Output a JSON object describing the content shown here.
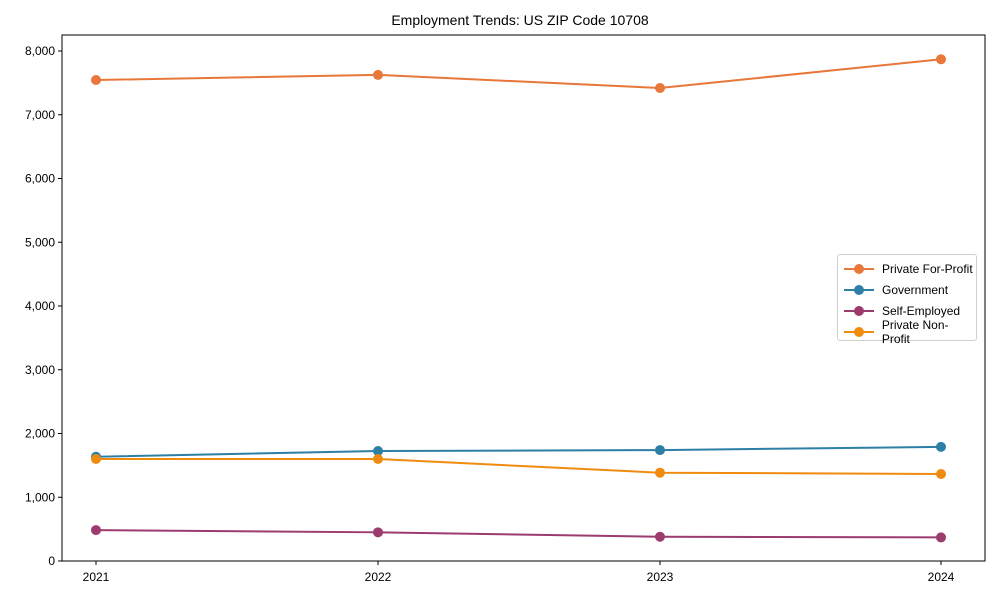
{
  "chart_data": {
    "type": "line",
    "title": "Employment Trends: US ZIP Code 10708",
    "xlabel": "",
    "ylabel": "",
    "x": [
      "2021",
      "2022",
      "2023",
      "2024"
    ],
    "ylim": [
      0,
      8250
    ],
    "yticks": [
      "0",
      "1,000",
      "2,000",
      "3,000",
      "4,000",
      "5,000",
      "6,000",
      "7,000",
      "8,000"
    ],
    "grid": false,
    "legend_position": "center right",
    "series": [
      {
        "name": "Private For-Profit",
        "color": "#e8773a",
        "values": [
          7545,
          7625,
          7420,
          7870
        ]
      },
      {
        "name": "Government",
        "color": "#2e7fa6",
        "values": [
          1635,
          1725,
          1740,
          1790
        ]
      },
      {
        "name": "Self-Employed",
        "color": "#9b3b6e",
        "values": [
          485,
          450,
          380,
          370
        ]
      },
      {
        "name": "Private Non-Profit",
        "color": "#ef8c0f",
        "values": [
          1600,
          1600,
          1385,
          1365
        ]
      }
    ]
  }
}
